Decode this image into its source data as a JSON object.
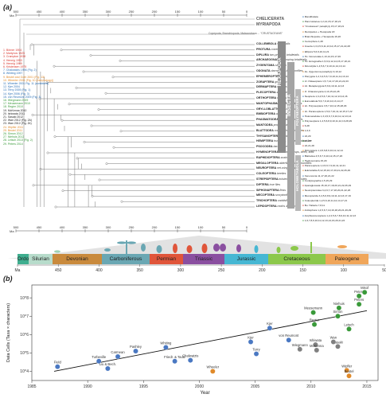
{
  "panel_a": {
    "label": "(a)",
    "axis_unit": "Ma",
    "axis_ticks": [
      "500",
      "450",
      "400",
      "350",
      "300",
      "250",
      "200",
      "150",
      "100",
      "50",
      "0"
    ],
    "outgroups": [
      "CHELICERATA",
      "MYRIAPODA"
    ],
    "crustacea_note": "Copepoda, Branchiopoda, Malacostraca ... \"CRUSTACEANS\"",
    "taxa": [
      {
        "name": "COLLEMBOLA",
        "common": "springtails"
      },
      {
        "name": "PROTURA",
        "common": "coneheads"
      },
      {
        "name": "DIPLURA",
        "common": "two-pronged bristletails"
      },
      {
        "name": "ARCHAEOGNATHA",
        "common": "jumping bristletails"
      },
      {
        "name": "ZYGENTOMA",
        "common": "silverfish"
      },
      {
        "name": "ODONATA",
        "common": "damselflies & dragonflies"
      },
      {
        "name": "EPHEMEROPTERA",
        "common": "mayflies"
      },
      {
        "name": "ZORAPTERA",
        "common": "ground lice"
      },
      {
        "name": "DERMAPTERA",
        "common": "earwigs"
      },
      {
        "name": "PLECOPTERA",
        "common": "stoneflies"
      },
      {
        "name": "ORTHOPTERA",
        "common": "crickets & katydids"
      },
      {
        "name": "MANTOPHASMATODEA",
        "common": "gladiators"
      },
      {
        "name": "GRYLLOBLATTODEA",
        "common": "ice crawlers"
      },
      {
        "name": "EMBIOPTERA",
        "common": "webspinners"
      },
      {
        "name": "PHASMATODEA",
        "common": "stick & leaf insects"
      },
      {
        "name": "MANTODEA",
        "common": "praying mantids"
      },
      {
        "name": "BLATTODEA",
        "common": "cockroaches & termites"
      },
      {
        "name": "THYSANOPTERA",
        "common": "thrips"
      },
      {
        "name": "HEMIPTERA",
        "common": "true bugs, cicadas & plant lice"
      },
      {
        "name": "PSOCODEA",
        "common": "bark & true lice"
      },
      {
        "name": "HYMENOPTERA",
        "common": "sawflies, wasps, bees, ants"
      },
      {
        "name": "RAPHIDIOPTERA",
        "common": "snakeflies"
      },
      {
        "name": "MEGALOPTERA",
        "common": "alderflies and dobsonflies"
      },
      {
        "name": "NEUROPTERA",
        "common": "net-winged insects"
      },
      {
        "name": "COLEOPTERA",
        "common": "beetles"
      },
      {
        "name": "STREPSIPTERA",
        "common": "twisted wing parasites"
      },
      {
        "name": "DIPTERA",
        "common": "true flies"
      },
      {
        "name": "SIPHONAPTERA",
        "common": "fleas"
      },
      {
        "name": "MECOPTERA",
        "common": "scorpionflies"
      },
      {
        "name": "TRICHOPTERA",
        "common": "caddisflies"
      },
      {
        "name": "LEPIDOPTERA",
        "common": "moths & butterflies"
      }
    ],
    "references": [
      {
        "text": "1. Börner 1904",
        "color": "#d9342b"
      },
      {
        "text": "2. Martynov 1925",
        "color": "#d9342b"
      },
      {
        "text": "3. Crampton 1938",
        "color": "#d9342b"
      },
      {
        "text": "4. Hennig 1953",
        "color": "#d9342b"
      },
      {
        "text": "5. Hennig 1969",
        "color": "#d9342b"
      },
      {
        "text": "6. Kristensen 1975",
        "color": "#d9342b"
      },
      {
        "text": "7. Chalwatzis 1996 (Fig. 2)",
        "color": "#2a6fb5"
      },
      {
        "text": "8. Whiting 1997",
        "color": "#2a6fb5"
      },
      {
        "text": "9. Beutel and Gorb 2001 (Fig. 13)",
        "color": "#e08a2a"
      },
      {
        "text": "10. Wheeler 2001 (Fig. 10 (morphology))",
        "color": "#e08a2a"
      },
      {
        "text": "11. Wheeler 2001 Fig. 11 (combined)",
        "color": "#2a6fb5"
      },
      {
        "text": "12. Kjer 2004",
        "color": "#2a6fb5"
      },
      {
        "text": "13. Terry 2005 (Fig. 1)",
        "color": "#2a6fb5"
      },
      {
        "text": "14. Kjer 2006 (Fig. 3)",
        "color": "#2a6fb5"
      },
      {
        "text": "15. von Reumont 2009 (Fig. 3)",
        "color": "#2a6fb5"
      },
      {
        "text": "16. Wiegmann 2009",
        "color": "#3a9a3a"
      },
      {
        "text": "17. Meusemann 2010",
        "color": "#3a9a3a"
      },
      {
        "text": "18. Regier 2010",
        "color": "#3a9a3a"
      },
      {
        "text": "19. McKenna 2010",
        "color": "#222222"
      },
      {
        "text": "20. Ishiwata 2011",
        "color": "#222222"
      },
      {
        "text": "21. Sasaki 2012",
        "color": "#222222"
      },
      {
        "text": "22. Wan 2012 (Fig. 2A)",
        "color": "#222222"
      },
      {
        "text": "23. Wan 2012 (Fig. 2b)",
        "color": "#222222"
      },
      {
        "text": "24. Wipfler 2011",
        "color": "#e08a2a"
      },
      {
        "text": "25. Beutel 2011",
        "color": "#e08a2a"
      },
      {
        "text": "26. Simon 2012",
        "color": "#3a9a3a"
      },
      {
        "text": "27. Niehuis 2012",
        "color": "#3a9a3a"
      },
      {
        "text": "28. Letsch 2013 (Fig. 2)",
        "color": "#3a9a3a"
      },
      {
        "text": "29. Peters 2014",
        "color": "#3a9a3a"
      }
    ],
    "right_labels": [
      "Mandibulata",
      "Pancrustacea 1,2,14,15,17,18,21",
      "\"Crustacean\" paraphyly 15,17,18,21",
      "Remipedes + Hexapoda 18",
      "Branchiopoda + Hexapoda 16,20",
      "Cercophora 1,28",
      "Insecta 1,3,4,5,6,11,13,14,15,17,21,22,28",
      "Ellipura 5,6,9,10,11,21",
      "Hx. Nonoculata 1,13,14,15,17,26",
      "Hx. Entognatha 1,5,6,9,12,14,15,17,18,21",
      "Dicondylia 1,4,5,6,7,9,10,11,12,13,14",
      "Ze. Zygentoma paraphyly 9,10,12",
      "Pterygota 1,2,3,4,5,6,7,9,10,11,12,13,14",
      "Jz. Palaeoptera 1,5,7,14,17,20,21,22,23",
      "Jd. Metapterygota 5,6,9,10,11,12,13",
      "Jf. Chiastomyaria 4,13,15,22,28",
      "Neoptera 1,3,4,5,6,7,10,11,12,13,14,16",
      "Eumetabola 5,6,7,9,10,12,13,14,17",
      "Lb. Polyneoptera 3,5,7,10,12,15,28,29",
      "Lb. Paraneoptera 1,5,6,7,10,11,12,15,17,22",
      "Holometabola 1,3,4,5,6,7,9,10,11,12,13,14",
      "Polyneoptera 1,4,5,6,8,9,10,11,12,13,28,29",
      "6,28",
      "1,6,9",
      "22,29",
      "22,28",
      "22,21,28",
      "Dictyoptera 1,4,5,6,8,9,10,11,12,14",
      "Blattodea 4,5,6,7,9,10,12,15,17,20",
      "Haplocercaria 15,29",
      "Paraneoptera 1,4,5,6,7,9,10,11,12,21",
      "Eukinolabia 8,12,15,16,17,20,21,22,26,29",
      "Xenonomia 11,17,20,21,22",
      "Condylognatha 1,5,15,29",
      "Aparaglossata 15,16,17,18,20,21,22,26,29",
      "Neuropteroidea 3,4,6,7,17,18,20,21,22,26",
      "Mecopterida 3,4,5,6,8,9,10,11,12,13,17,19",
      "Coleopterida 1,2,5,6,10,11,12,14,17,21",
      "Bu. Halteria 7,8,11",
      "Antliophora 1,4,5,6,7,10,16,18,20,21,26,29",
      "Amphiesmenoptera 1,2,4,5,6,7,8,9,10,11,12,13",
      "1,6,7,8,9,10,11,12,13,14,16,20,21,22"
    ],
    "group_bars": {
      "hexapoda": "HEXAPODA",
      "insecta": "INSECTA",
      "polyneoptera": "POLYNEOPTERA",
      "holometabola": "HOLOMETABOLA"
    },
    "periods": [
      {
        "name": "Ordo",
        "color": "#3fae8f"
      },
      {
        "name": "Silurian",
        "color": "#b7dccb"
      },
      {
        "name": "Devonian",
        "color": "#c98a3d"
      },
      {
        "name": "Carboniferous",
        "color": "#6aa7b3"
      },
      {
        "name": "Permian",
        "color": "#e0553a"
      },
      {
        "name": "Triassic",
        "color": "#8a4fa0"
      },
      {
        "name": "Jurassic",
        "color": "#46b7d3"
      },
      {
        "name": "Cretaceous",
        "color": "#8cc84b"
      },
      {
        "name": "Paleogene",
        "color": "#f0a65a"
      }
    ],
    "timescale_ticks": [
      "Ma",
      "450",
      "400",
      "350",
      "300",
      "250",
      "200",
      "150",
      "100",
      "50"
    ]
  },
  "panel_b": {
    "label": "(b)",
    "chart_data": {
      "type": "scatter",
      "xlabel": "Year",
      "ylabel": "Data Cells (Taxa × characters)",
      "xlim": [
        1985,
        2016
      ],
      "ylim_log10": [
        3.5,
        8.7
      ],
      "x_ticks": [
        "1985",
        "1990",
        "1995",
        "2000",
        "2005",
        "2010",
        "2015"
      ],
      "y_ticks": [
        "10^4",
        "10^5",
        "10^6",
        "10^7",
        "10^8"
      ],
      "trend": {
        "from": [
          1987,
          4.0
        ],
        "to": [
          2015,
          7.3
        ]
      },
      "points": [
        {
          "label": "Field",
          "x": 1987.3,
          "y_log": 4.25,
          "color": "#4a78c2"
        },
        {
          "label": "Turbeville",
          "x": 1991.0,
          "y_log": 4.55,
          "color": "#4a78c2"
        },
        {
          "label": "Liu & Bech.",
          "x": 1991.8,
          "y_log": 4.15,
          "color": "#4a78c2"
        },
        {
          "label": "Carmean",
          "x": 1992.7,
          "y_log": 4.8,
          "color": "#4a78c2"
        },
        {
          "label": "Pashley",
          "x": 1994.3,
          "y_log": 5.1,
          "color": "#4a78c2"
        },
        {
          "label": "Whiting",
          "x": 1997.0,
          "y_log": 5.3,
          "color": "#4a78c2"
        },
        {
          "label": "Friedr. & Tautz",
          "x": 1997.8,
          "y_log": 4.55,
          "color": "#4a78c2"
        },
        {
          "label": "Chalwatzis",
          "x": 1999.2,
          "y_log": 4.6,
          "color": "#4a78c2"
        },
        {
          "label": "Wheeler",
          "x": 2001.2,
          "y_log": 4.0,
          "color": "#e08a2a"
        },
        {
          "label": "Kjer",
          "x": 2004.6,
          "y_log": 5.6,
          "color": "#4a78c2"
        },
        {
          "label": "Terry",
          "x": 2005.1,
          "y_log": 4.95,
          "color": "#4a78c2"
        },
        {
          "label": "Kjer",
          "x": 2006.3,
          "y_log": 6.35,
          "color": "#4a78c2"
        },
        {
          "label": "von Reumont",
          "x": 2008.0,
          "y_log": 5.7,
          "color": "#4a78c2"
        },
        {
          "label": "Ishiwata",
          "x": 2010.4,
          "y_log": 5.45,
          "color": "#808080"
        },
        {
          "label": "Wiegmann",
          "x": 2009.0,
          "y_log": 5.2,
          "color": "#808080"
        },
        {
          "label": "McKenna",
          "x": 2010.5,
          "y_log": 5.15,
          "color": "#808080"
        },
        {
          "label": "Sasaki",
          "x": 2012.4,
          "y_log": 5.35,
          "color": "#808080"
        },
        {
          "label": "Wan",
          "x": 2012.0,
          "y_log": 5.6,
          "color": "#808080"
        },
        {
          "label": "Letsch",
          "x": 2013.4,
          "y_log": 6.3,
          "color": "#3a9a3a"
        },
        {
          "label": "Regier",
          "x": 2010.3,
          "y_log": 6.55,
          "color": "#3a9a3a"
        },
        {
          "label": "Meusemann",
          "x": 2010.2,
          "y_log": 7.2,
          "color": "#3a9a3a"
        },
        {
          "label": "Simon",
          "x": 2012.4,
          "y_log": 7.0,
          "color": "#3a9a3a"
        },
        {
          "label": "Niehuis",
          "x": 2012.5,
          "y_log": 7.45,
          "color": "#3a9a3a"
        },
        {
          "label": "Peters",
          "x": 2014.3,
          "y_log": 7.65,
          "color": "#3a9a3a"
        },
        {
          "label": "Peters",
          "x": 2014.3,
          "y_log": 8.1,
          "color": "#3a9a3a"
        },
        {
          "label": "Misof",
          "x": 2014.8,
          "y_log": 8.3,
          "color": "#3a9a3a"
        },
        {
          "label": "Wipfler",
          "x": 2013.2,
          "y_log": 4.05,
          "color": "#e08a2a"
        },
        {
          "label": "Beutel",
          "x": 2013.4,
          "y_log": 3.75,
          "color": "#e08a2a"
        }
      ]
    }
  }
}
